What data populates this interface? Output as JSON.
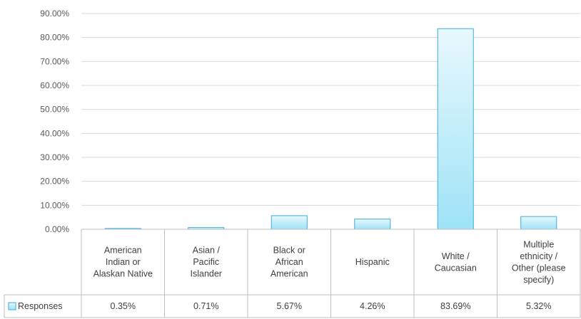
{
  "chart_data": {
    "type": "bar",
    "categories": [
      "American Indian or Alaskan Native",
      "Asian / Pacific Islander",
      "Black or African American",
      "Hispanic",
      "White / Caucasian",
      "Multiple ethnicity / Other (please specify)"
    ],
    "series": [
      {
        "name": "Responses",
        "values": [
          0.35,
          0.71,
          5.67,
          4.26,
          83.69,
          5.32
        ]
      }
    ],
    "value_labels": [
      "0.35%",
      "0.71%",
      "5.67%",
      "4.26%",
      "83.69%",
      "5.32%"
    ],
    "y_ticks": [
      "0.00%",
      "10.00%",
      "20.00%",
      "30.00%",
      "40.00%",
      "50.00%",
      "60.00%",
      "70.00%",
      "80.00%",
      "90.00%"
    ],
    "ylim": [
      0,
      90
    ],
    "grid": true,
    "legend": "bottom-left (in data table)",
    "colors": {
      "bar_fill_top": "#e8f8fd",
      "bar_fill_bottom": "#9ee3f7",
      "bar_stroke": "#3aaed8",
      "grid": "#d9d9d9",
      "table_border": "#bfbfbf"
    },
    "title": "",
    "xlabel": "",
    "ylabel": ""
  }
}
